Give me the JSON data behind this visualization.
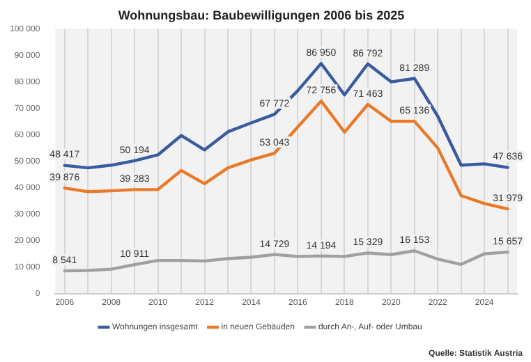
{
  "chart_data": {
    "type": "line",
    "title": "Wohnungsbau: Baubewilligungen 2006 bis 2025",
    "x": [
      2006,
      2007,
      2008,
      2009,
      2010,
      2011,
      2012,
      2013,
      2014,
      2015,
      2016,
      2017,
      2018,
      2019,
      2020,
      2021,
      2022,
      2023,
      2024,
      2025
    ],
    "series": [
      {
        "name": "Wohnungen insgesamt",
        "color": "#3a5ba0",
        "values": [
          48417,
          47500,
          48500,
          50194,
          52400,
          59700,
          54300,
          61100,
          64500,
          67772,
          76700,
          86950,
          75100,
          86792,
          80000,
          81289,
          67000,
          48500,
          49000,
          47636
        ],
        "value_labels": [
          "48 417",
          null,
          null,
          "50 194",
          null,
          null,
          null,
          null,
          null,
          "67 772",
          null,
          "86 950",
          null,
          "86 792",
          null,
          "81 289",
          null,
          null,
          null,
          "47 636"
        ]
      },
      {
        "name": "in neuen Gebäuden",
        "color": "#e87b2a",
        "values": [
          39876,
          38500,
          38800,
          39283,
          39300,
          46500,
          41500,
          47500,
          50500,
          53043,
          63000,
          72756,
          61000,
          71463,
          65100,
          65136,
          55000,
          37000,
          34000,
          31979
        ],
        "value_labels": [
          "39 876",
          null,
          null,
          "39 283",
          null,
          null,
          null,
          null,
          null,
          "53 043",
          null,
          "72 756",
          null,
          "71 463",
          null,
          "65 136",
          null,
          null,
          null,
          "31 979"
        ]
      },
      {
        "name": "durch An-, Auf- oder Umbau",
        "color": "#a0a0a0",
        "values": [
          8541,
          8700,
          9200,
          10911,
          12500,
          12500,
          12300,
          13200,
          13700,
          14729,
          14000,
          14194,
          14000,
          15329,
          14700,
          16153,
          13000,
          11000,
          15000,
          15657
        ],
        "value_labels": [
          "8 541",
          null,
          null,
          "10 911",
          null,
          null,
          null,
          null,
          null,
          "14 729",
          null,
          "14 194",
          null,
          "15 329",
          null,
          "16 153",
          null,
          null,
          null,
          "15 657"
        ]
      }
    ],
    "xlim": [
      2005.6,
      2025.4
    ],
    "xticks": [
      2006,
      {
        "value": 2007,
        "label": null
      },
      2008,
      {
        "value": 2009,
        "label": null
      },
      2010,
      {
        "value": 2011,
        "label": null
      },
      2012,
      {
        "value": 2013,
        "label": null
      },
      2014,
      {
        "value": 2015,
        "label": null
      },
      2016,
      {
        "value": 2017,
        "label": null
      },
      2018,
      {
        "value": 2019,
        "label": null
      },
      2020,
      {
        "value": 2021,
        "label": null
      },
      2022,
      {
        "value": 2023,
        "label": null
      },
      2024,
      {
        "value": 2025,
        "label": null
      }
    ],
    "ylim": [
      0,
      100000
    ],
    "yticks": [
      0,
      {
        "value": 10000,
        "label": "10 000"
      },
      {
        "value": 20000,
        "label": "20 000"
      },
      {
        "value": 30000,
        "label": "30 000"
      },
      {
        "value": 40000,
        "label": "40 000"
      },
      {
        "value": 50000,
        "label": "50 000"
      },
      {
        "value": 60000,
        "label": "60 000"
      },
      {
        "value": 70000,
        "label": "70 000"
      },
      {
        "value": 80000,
        "label": "80 000"
      },
      {
        "value": 90000,
        "label": "90 000"
      },
      {
        "value": 100000,
        "label": "100 000"
      }
    ],
    "grid": "x",
    "legend": "bottom",
    "marker": "none",
    "line_style": "solid",
    "annotations": [
      "Quelle: Statistik Austria"
    ]
  }
}
